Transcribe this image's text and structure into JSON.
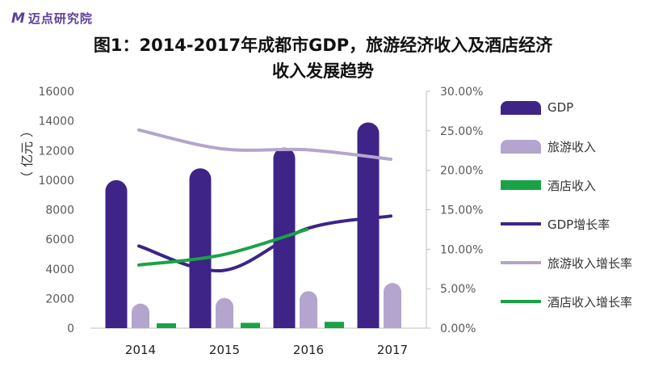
{
  "brand": {
    "mark": "M",
    "name": "迈点研究院"
  },
  "chart_data": {
    "type": "bar",
    "title_line1": "图1：2014-2017年成都市GDP，旅游经济收入及酒店经济",
    "title_line2": "收入发展趋势",
    "ylabel": "（ 亿元 ）",
    "categories": [
      "2014",
      "2015",
      "2016",
      "2017"
    ],
    "ylim": [
      0,
      16000
    ],
    "y_ticks": [
      "0",
      "2000",
      "4000",
      "6000",
      "8000",
      "10000",
      "12000",
      "14000",
      "16000"
    ],
    "y2lim": [
      0,
      0.3
    ],
    "y2_ticks": [
      "0.00%",
      "5.00%",
      "10.00%",
      "15.00%",
      "20.00%",
      "25.00%",
      "30.00%"
    ],
    "bar_series": [
      {
        "name": "GDP",
        "color": "#3d2486",
        "values": [
          10000,
          10800,
          12200,
          13900
        ]
      },
      {
        "name": "旅游收入",
        "color": "#b3a5cd",
        "values": [
          1660,
          2040,
          2500,
          3050
        ]
      },
      {
        "name": "酒店收入",
        "color": "#1aa346",
        "values": [
          330,
          360,
          430,
          null
        ]
      }
    ],
    "line_series": [
      {
        "name": "GDP增长率",
        "color": "#3d2486",
        "values": [
          0.104,
          0.073,
          0.126,
          0.142
        ]
      },
      {
        "name": "旅游收入增长率",
        "color": "#b3a5cd",
        "values": [
          0.251,
          0.227,
          0.226,
          0.214
        ]
      },
      {
        "name": "酒店收入增长率",
        "color": "#1aa346",
        "values": [
          0.08,
          0.093,
          0.125,
          null
        ]
      }
    ],
    "legend_position": "right",
    "grid": false
  }
}
